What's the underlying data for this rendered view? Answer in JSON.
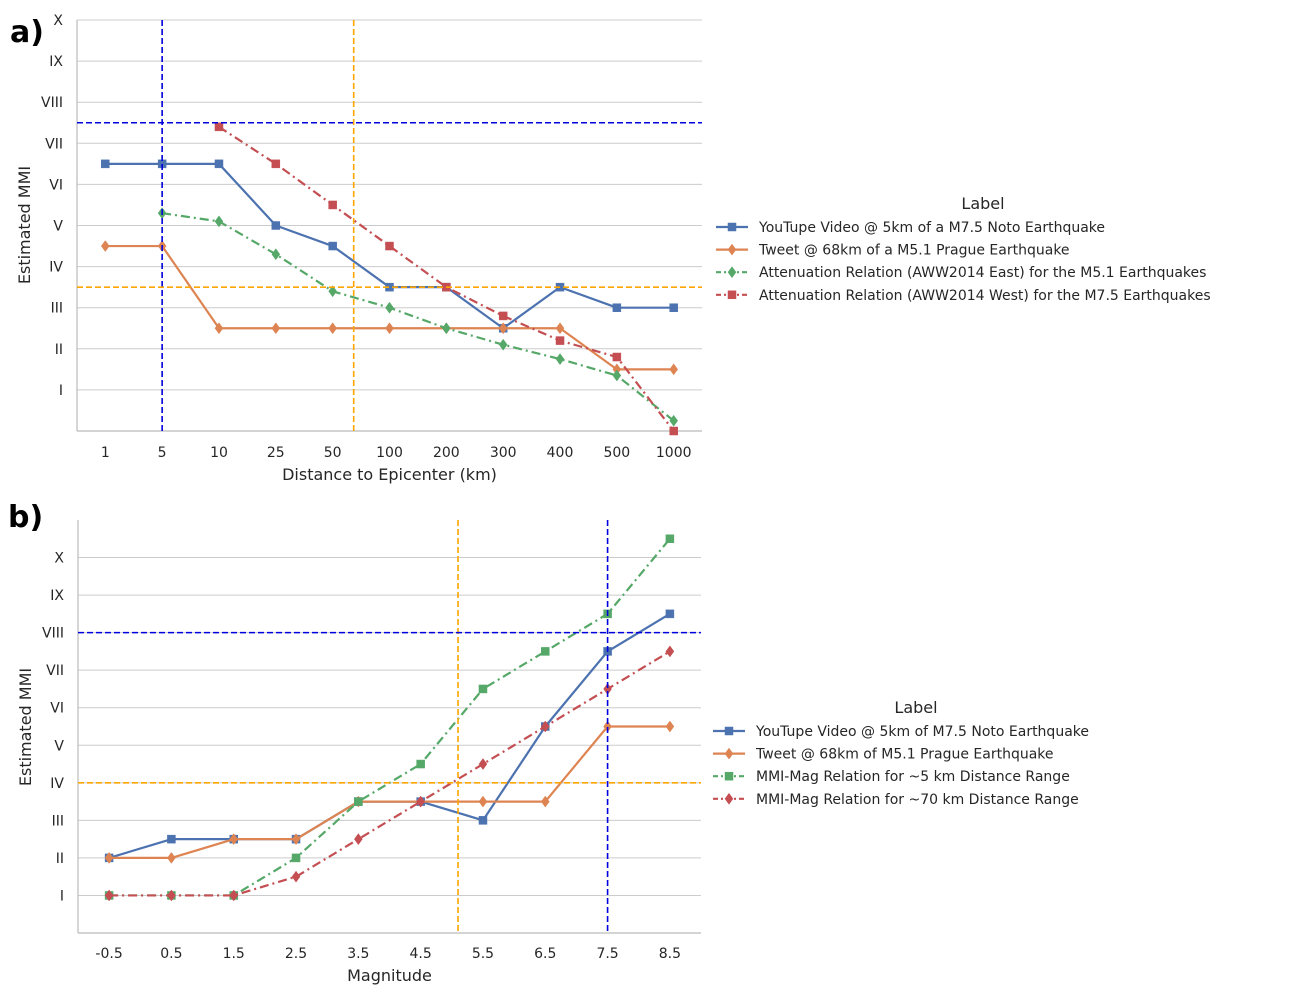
{
  "colors": {
    "blue": "#4c72b0",
    "orange": "#dd8452",
    "green": "#55a868",
    "red": "#c44e52",
    "ref_blue": "#0000dd",
    "ref_orange": "#ffa500",
    "grid": "#cccccc",
    "axis": "#bbbbbb",
    "text": "#262626"
  },
  "chart_data": [
    {
      "type": "line",
      "panel_label": "a)",
      "xlabel": "Distance to Epicenter (km)",
      "ylabel": "Estimated MMI",
      "categories": [
        "1",
        "5",
        "10",
        "25",
        "50",
        "100",
        "200",
        "300",
        "400",
        "500",
        "1000"
      ],
      "ylim": [
        0,
        10
      ],
      "yticks": [
        1,
        2,
        3,
        4,
        5,
        6,
        7,
        8,
        9,
        10
      ],
      "ytick_labels": [
        "I",
        "II",
        "III",
        "IV",
        "V",
        "VI",
        "VII",
        "VIII",
        "IX",
        "X"
      ],
      "grid": "horizontal",
      "legend_title": "Label",
      "reference_lines": {
        "vertical": [
          {
            "x_index": 1,
            "color": "ref_blue"
          },
          {
            "x_index": 4.37,
            "color": "ref_orange"
          }
        ],
        "horizontal": [
          {
            "y": 7.5,
            "color": "ref_blue"
          },
          {
            "y": 3.5,
            "color": "ref_orange"
          }
        ]
      },
      "series": [
        {
          "name": "YouTupe Video @ 5km of a M7.5 Noto Earthquake",
          "color": "blue",
          "marker": "square",
          "dash": "solid",
          "values": [
            6.5,
            6.5,
            6.5,
            5.0,
            4.5,
            3.5,
            3.5,
            2.5,
            3.5,
            3.0,
            3.0
          ]
        },
        {
          "name": "Tweet @ 68km of a M5.1 Prague Earthquake",
          "color": "orange",
          "marker": "diamond",
          "dash": "solid",
          "values": [
            4.5,
            4.5,
            2.5,
            2.5,
            2.5,
            2.5,
            2.5,
            2.5,
            2.5,
            1.5,
            1.5
          ]
        },
        {
          "name": "Attenuation Relation (AWW2014 East) for the M5.1 Earthquakes",
          "color": "green",
          "marker": "diamond",
          "dash": "dashdot",
          "values": [
            null,
            5.3,
            5.1,
            4.3,
            3.4,
            3.0,
            2.5,
            2.1,
            1.75,
            1.35,
            0.25
          ]
        },
        {
          "name": "Attenuation Relation (AWW2014 West) for the M7.5 Earthquakes",
          "color": "red",
          "marker": "square",
          "dash": "dashdot",
          "values": [
            null,
            null,
            7.4,
            6.5,
            5.5,
            4.5,
            3.5,
            2.8,
            2.2,
            1.8,
            0.0
          ]
        }
      ]
    },
    {
      "type": "line",
      "panel_label": "b)",
      "xlabel": "Magnitude",
      "ylabel": "Estimated MMI",
      "categories": [
        "-0.5",
        "0.5",
        "1.5",
        "2.5",
        "3.5",
        "4.5",
        "5.5",
        "6.5",
        "7.5",
        "8.5"
      ],
      "ylim": [
        0,
        11
      ],
      "yticks": [
        1,
        2,
        3,
        4,
        5,
        6,
        7,
        8,
        9,
        10
      ],
      "ytick_labels": [
        "I",
        "II",
        "III",
        "IV",
        "V",
        "VI",
        "VII",
        "VIII",
        "IX",
        "X"
      ],
      "grid": "horizontal",
      "legend_title": "Label",
      "reference_lines": {
        "vertical": [
          {
            "x_index": 5.6,
            "color": "ref_orange"
          },
          {
            "x_index": 8.0,
            "color": "ref_blue"
          }
        ],
        "horizontal": [
          {
            "y": 8.0,
            "color": "ref_blue"
          },
          {
            "y": 4.0,
            "color": "ref_orange"
          }
        ]
      },
      "series": [
        {
          "name": "YouTupe Video @ 5km of M7.5 Noto Earthquake",
          "color": "blue",
          "marker": "square",
          "dash": "solid",
          "values": [
            2.0,
            2.5,
            2.5,
            2.5,
            3.5,
            3.5,
            3.0,
            5.5,
            7.5,
            8.5
          ]
        },
        {
          "name": "Tweet @ 68km of M5.1 Prague Earthquake",
          "color": "orange",
          "marker": "diamond",
          "dash": "solid",
          "values": [
            2.0,
            2.0,
            2.5,
            2.5,
            3.5,
            3.5,
            3.5,
            3.5,
            5.5,
            5.5
          ]
        },
        {
          "name": "MMI-Mag Relation for ~5 km Distance Range",
          "color": "green",
          "marker": "square",
          "dash": "dashdot",
          "values": [
            1.0,
            1.0,
            1.0,
            2.0,
            3.5,
            4.5,
            6.5,
            7.5,
            8.5,
            10.5
          ]
        },
        {
          "name": "MMI-Mag Relation for ~70 km Distance Range",
          "color": "red",
          "marker": "diamond",
          "dash": "dashdot",
          "values": [
            1.0,
            1.0,
            1.0,
            1.5,
            2.5,
            3.5,
            4.5,
            5.5,
            6.5,
            7.5
          ]
        }
      ]
    }
  ]
}
